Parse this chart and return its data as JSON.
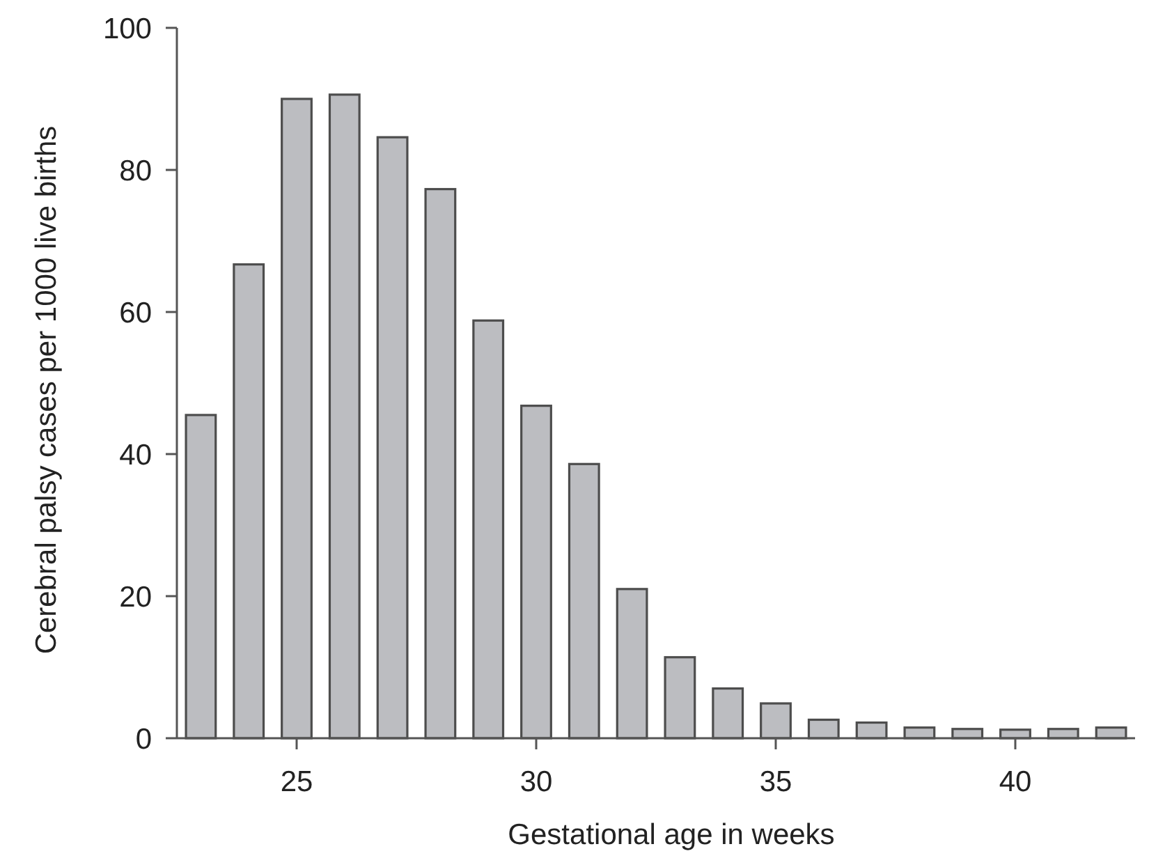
{
  "chart_data": {
    "type": "bar",
    "xlabel": "Gestational age in weeks",
    "ylabel": "Cerebral palsy cases per 1000 live births",
    "x": [
      23,
      24,
      25,
      26,
      27,
      28,
      29,
      30,
      31,
      32,
      33,
      34,
      35,
      36,
      37,
      38,
      39,
      40,
      41,
      42
    ],
    "values": [
      45.5,
      66.7,
      90.0,
      90.6,
      84.6,
      77.3,
      58.8,
      46.8,
      38.6,
      21.0,
      11.4,
      7.0,
      4.9,
      2.6,
      2.2,
      1.5,
      1.3,
      1.2,
      1.3,
      1.5
    ],
    "color": "#bcbdc1",
    "xlim": [
      22.5,
      42.5
    ],
    "ylim": [
      0,
      100
    ],
    "xticks": [
      25,
      30,
      35,
      40
    ],
    "yticks": [
      0,
      20,
      40,
      60,
      80,
      100
    ]
  }
}
